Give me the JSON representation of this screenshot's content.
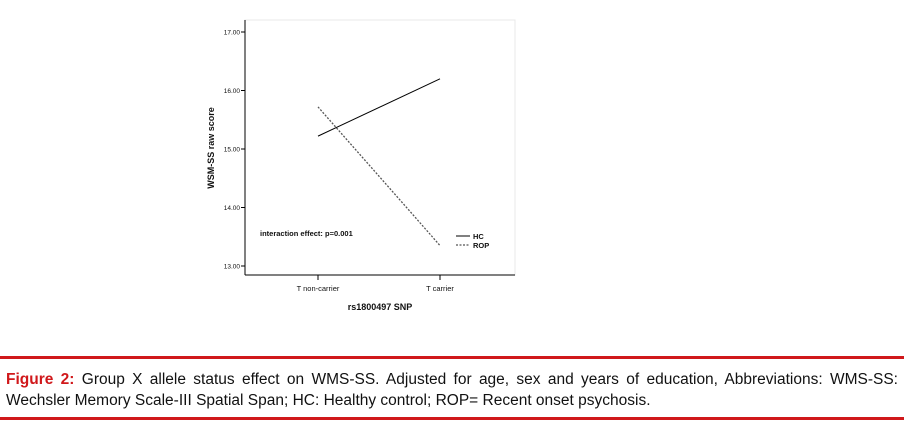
{
  "chart_data": {
    "type": "line",
    "xlabel": "rs1800497 SNP",
    "ylabel": "WSM-SS raw score",
    "categories": [
      "T non-carrier",
      "T carrier"
    ],
    "ylim": [
      13.0,
      17.0
    ],
    "yticks": [
      "13.00",
      "14.00",
      "15.00",
      "16.00",
      "17.00"
    ],
    "grid": false,
    "legend_position": "bottom-right",
    "series": [
      {
        "name": "HC",
        "values": [
          15.22,
          16.2
        ],
        "style": "solid",
        "color": "#000000"
      },
      {
        "name": "ROP",
        "values": [
          15.72,
          13.35
        ],
        "style": "dashed",
        "color": "#555555"
      }
    ],
    "annotation": "interaction effect: p=0.001"
  },
  "caption": {
    "label": "Figure 2:",
    "text": "Group X allele status effect on WMS-SS. Adjusted for age, sex and years of education, Abbreviations: WMS-SS: Wechsler Memory Scale-III Spatial Span; HC: Healthy control; ROP= Recent onset psychosis."
  },
  "colors": {
    "caption_rule": "#d0181b",
    "caption_label": "#d0181b"
  }
}
